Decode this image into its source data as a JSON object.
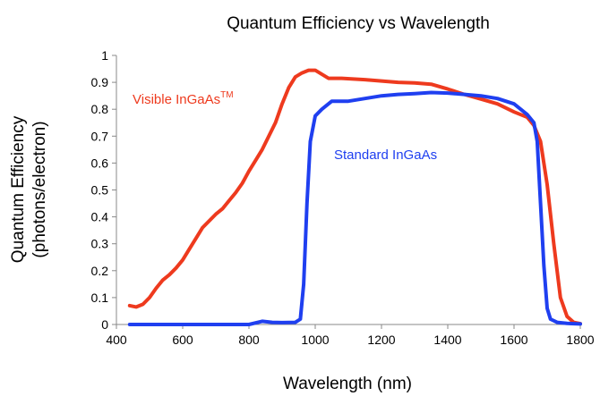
{
  "chart_data": {
    "type": "line",
    "title": "Quantum Efficiency vs Wavelength",
    "xlabel": "Wavelength (nm)",
    "ylabel_line1": "Quantum Efficiency",
    "ylabel_line2": "(photons/electron)",
    "xlim": [
      400,
      1800
    ],
    "ylim": [
      0,
      1
    ],
    "xticks": [
      400,
      600,
      800,
      1000,
      1200,
      1400,
      1600,
      1800
    ],
    "yticks": [
      0,
      0.1,
      0.2,
      0.3,
      0.4,
      0.5,
      0.6,
      0.7,
      0.8,
      0.9,
      1
    ],
    "ytick_labels": [
      "0",
      "0.1",
      "0.2",
      "0.3",
      "0.4",
      "0.5",
      "0.6",
      "0.7",
      "0.8",
      "0.9",
      "1"
    ],
    "grid": false,
    "series": [
      {
        "name": "Visible InGaAs",
        "name_superscript": "TM",
        "color": "#ee3a1e",
        "points": [
          [
            440,
            0.07
          ],
          [
            460,
            0.065
          ],
          [
            480,
            0.075
          ],
          [
            500,
            0.1
          ],
          [
            520,
            0.135
          ],
          [
            540,
            0.165
          ],
          [
            560,
            0.185
          ],
          [
            580,
            0.21
          ],
          [
            600,
            0.24
          ],
          [
            620,
            0.28
          ],
          [
            640,
            0.32
          ],
          [
            660,
            0.36
          ],
          [
            680,
            0.385
          ],
          [
            700,
            0.41
          ],
          [
            720,
            0.43
          ],
          [
            740,
            0.46
          ],
          [
            760,
            0.49
          ],
          [
            780,
            0.525
          ],
          [
            800,
            0.57
          ],
          [
            820,
            0.61
          ],
          [
            840,
            0.65
          ],
          [
            860,
            0.7
          ],
          [
            880,
            0.75
          ],
          [
            900,
            0.82
          ],
          [
            920,
            0.88
          ],
          [
            940,
            0.92
          ],
          [
            960,
            0.935
          ],
          [
            980,
            0.945
          ],
          [
            1000,
            0.945
          ],
          [
            1020,
            0.93
          ],
          [
            1040,
            0.915
          ],
          [
            1080,
            0.915
          ],
          [
            1150,
            0.91
          ],
          [
            1200,
            0.905
          ],
          [
            1250,
            0.9
          ],
          [
            1300,
            0.898
          ],
          [
            1350,
            0.893
          ],
          [
            1400,
            0.875
          ],
          [
            1450,
            0.855
          ],
          [
            1500,
            0.838
          ],
          [
            1550,
            0.82
          ],
          [
            1600,
            0.79
          ],
          [
            1640,
            0.77
          ],
          [
            1660,
            0.74
          ],
          [
            1680,
            0.68
          ],
          [
            1700,
            0.52
          ],
          [
            1720,
            0.3
          ],
          [
            1740,
            0.1
          ],
          [
            1760,
            0.03
          ],
          [
            1780,
            0.008
          ],
          [
            1800,
            0.003
          ]
        ]
      },
      {
        "name": "Standard InGaAs",
        "color": "#1f3ff0",
        "points": [
          [
            440,
            0.0
          ],
          [
            600,
            0.0
          ],
          [
            800,
            0.0
          ],
          [
            840,
            0.012
          ],
          [
            870,
            0.008
          ],
          [
            900,
            0.007
          ],
          [
            940,
            0.008
          ],
          [
            955,
            0.02
          ],
          [
            965,
            0.15
          ],
          [
            975,
            0.45
          ],
          [
            985,
            0.68
          ],
          [
            1000,
            0.775
          ],
          [
            1020,
            0.8
          ],
          [
            1050,
            0.83
          ],
          [
            1100,
            0.83
          ],
          [
            1150,
            0.84
          ],
          [
            1200,
            0.85
          ],
          [
            1250,
            0.855
          ],
          [
            1300,
            0.858
          ],
          [
            1350,
            0.862
          ],
          [
            1400,
            0.86
          ],
          [
            1450,
            0.855
          ],
          [
            1500,
            0.85
          ],
          [
            1550,
            0.84
          ],
          [
            1600,
            0.82
          ],
          [
            1640,
            0.78
          ],
          [
            1660,
            0.75
          ],
          [
            1670,
            0.68
          ],
          [
            1680,
            0.45
          ],
          [
            1690,
            0.22
          ],
          [
            1700,
            0.06
          ],
          [
            1710,
            0.02
          ],
          [
            1730,
            0.008
          ],
          [
            1760,
            0.004
          ],
          [
            1800,
            0.002
          ]
        ]
      }
    ]
  }
}
